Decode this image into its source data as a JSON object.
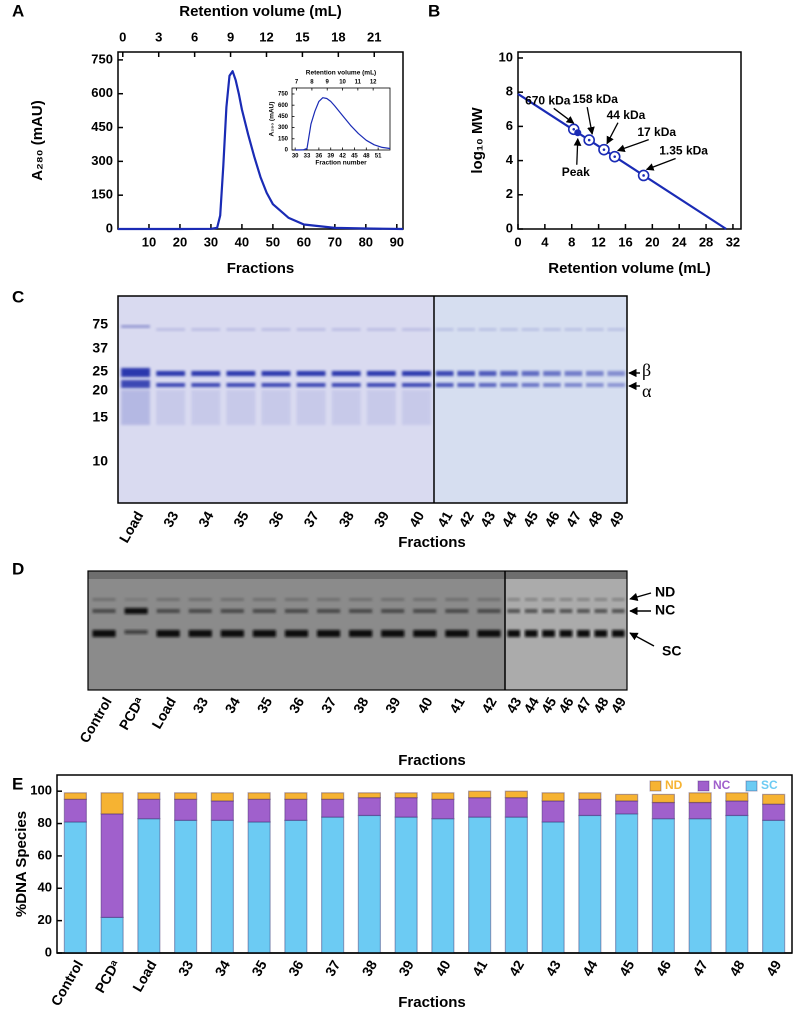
{
  "chart_data": [
    {
      "panel": "A",
      "type": "line",
      "x_label": "Fractions",
      "x2_label": "Retention volume (mL)",
      "y_label": "A₂₈₀ (mAU)",
      "x": [
        0,
        10,
        20,
        30,
        32,
        33,
        34,
        35,
        36,
        37,
        38,
        39,
        40,
        42,
        44,
        46,
        48,
        50,
        55,
        60,
        70,
        80,
        92
      ],
      "values": [
        0,
        0,
        0,
        1,
        5,
        60,
        280,
        540,
        680,
        700,
        660,
        600,
        530,
        420,
        320,
        230,
        160,
        110,
        50,
        20,
        5,
        2,
        0
      ],
      "color": "#1a2bb5",
      "xlim": [
        0,
        92
      ],
      "xticks": [
        10,
        20,
        30,
        40,
        50,
        60,
        70,
        80,
        90
      ],
      "x2lim": [
        -0.4,
        23.4
      ],
      "x2ticks": [
        0,
        3,
        6,
        9,
        12,
        15,
        18,
        21
      ],
      "ylim": [
        0,
        785
      ],
      "yticks": [
        0,
        150,
        300,
        450,
        600,
        750
      ]
    },
    {
      "type": "line",
      "x_label": "Fraction number",
      "x2_label": "Retention volume (mL)",
      "y_label": "A₂₈₀ (mAU)",
      "x": [
        30,
        32,
        33,
        34,
        35,
        36,
        37,
        38,
        39,
        40,
        42,
        44,
        46,
        48,
        50,
        52,
        54
      ],
      "values": [
        0,
        2,
        20,
        350,
        520,
        650,
        700,
        690,
        650,
        590,
        460,
        330,
        220,
        130,
        70,
        35,
        20
      ],
      "color": "#1a2bb5",
      "xlim": [
        29.2,
        54
      ],
      "xticks": [
        30,
        33,
        36,
        39,
        42,
        45,
        48,
        51
      ],
      "x2lim": [
        6.7,
        13.1
      ],
      "x2ticks": [
        7,
        8,
        9,
        10,
        11,
        12
      ],
      "ylim": [
        0,
        830
      ],
      "yticks": [
        0,
        150,
        300,
        450,
        600,
        750
      ]
    },
    {
      "panel": "B",
      "type": "scatter",
      "x_label": "Retention volume (mL)",
      "y_label": "log₁₀ MW",
      "x": [
        8.3,
        10.6,
        12.8,
        14.4,
        18.7
      ],
      "values": [
        5.83,
        5.2,
        4.64,
        4.23,
        3.13
      ],
      "point_labels": [
        "670 kDa",
        "158 kDa",
        "44 kDa",
        "17 kDa",
        "1.35 kDa"
      ],
      "peak": {
        "x": 8.9,
        "value": 5.63,
        "label": "Peak"
      },
      "fit_line": {
        "x": [
          0,
          31
        ],
        "values": [
          7.9,
          0
        ]
      },
      "color": "#1a2bb5",
      "xlim": [
        0,
        33.2
      ],
      "xticks": [
        0,
        4,
        8,
        12,
        16,
        20,
        24,
        28,
        32
      ],
      "ylim": [
        0,
        10.35
      ],
      "yticks": [
        0,
        2,
        4,
        6,
        8,
        10
      ]
    },
    {
      "panel": "E",
      "type": "bar",
      "stacked": true,
      "x_label": "Fractions",
      "y_label": "%DNA Species",
      "categories": [
        "Control",
        "PCDᵃ",
        "Load",
        "33",
        "34",
        "35",
        "36",
        "37",
        "38",
        "39",
        "40",
        "41",
        "42",
        "43",
        "44",
        "45",
        "46",
        "47",
        "48",
        "49"
      ],
      "series": [
        {
          "name": "SC",
          "color": "#6ccbf3",
          "values": [
            81,
            22,
            83,
            82,
            82,
            81,
            82,
            84,
            85,
            84,
            83,
            84,
            84,
            81,
            85,
            86,
            83,
            83,
            85,
            82
          ]
        },
        {
          "name": "NC",
          "color": "#a060cc",
          "values": [
            14,
            64,
            12,
            13,
            12,
            14,
            13,
            11,
            11,
            12,
            12,
            12,
            12,
            13,
            10,
            8,
            10,
            10,
            9,
            10
          ]
        },
        {
          "name": "ND",
          "color": "#f6b332",
          "values": [
            4,
            13,
            4,
            4,
            5,
            4,
            4,
            4,
            3,
            3,
            4,
            4,
            4,
            5,
            4,
            4,
            5,
            6,
            5,
            6
          ]
        }
      ],
      "legend": "upper right",
      "ylim": [
        0,
        110
      ],
      "yticks": [
        0,
        20,
        40,
        60,
        80,
        100
      ]
    }
  ],
  "gels": [
    {
      "panel": "C",
      "markers": [
        "75",
        "37",
        "25",
        "20",
        "15",
        "10"
      ],
      "lanes": [
        "Load",
        "33",
        "34",
        "35",
        "36",
        "37",
        "38",
        "39",
        "40",
        "41",
        "42",
        "43",
        "44",
        "45",
        "46",
        "47",
        "48",
        "49"
      ],
      "x_label": "Fractions",
      "band_labels": [
        "β",
        "α"
      ]
    },
    {
      "panel": "D",
      "lanes": [
        "Control",
        "PCDᵃ",
        "Load",
        "33",
        "34",
        "35",
        "36",
        "37",
        "38",
        "39",
        "40",
        "41",
        "42",
        "43",
        "44",
        "45",
        "46",
        "47",
        "48",
        "49"
      ],
      "x_label": "Fractions",
      "band_labels": [
        "ND",
        "NC",
        "SC"
      ]
    }
  ]
}
